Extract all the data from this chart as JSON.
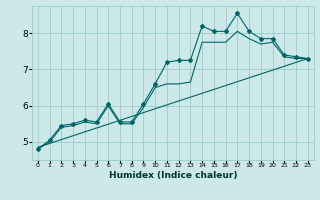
{
  "xlabel": "Humidex (Indice chaleur)",
  "bg_color": "#cce8e8",
  "grid_color": "#99cccc",
  "line_color": "#006666",
  "xlim": [
    -0.5,
    23.5
  ],
  "ylim": [
    4.5,
    8.75
  ],
  "yticks": [
    5,
    6,
    7,
    8
  ],
  "xticks": [
    0,
    1,
    2,
    3,
    4,
    5,
    6,
    7,
    8,
    9,
    10,
    11,
    12,
    13,
    14,
    15,
    16,
    17,
    18,
    19,
    20,
    21,
    22,
    23
  ],
  "line1_x": [
    0,
    1,
    2,
    3,
    4,
    5,
    6,
    7,
    8,
    9,
    10,
    11,
    12,
    13,
    14,
    15,
    16,
    17,
    18,
    19,
    20,
    21,
    22,
    23
  ],
  "line1_y": [
    4.8,
    5.05,
    5.45,
    5.5,
    5.6,
    5.55,
    6.05,
    5.55,
    5.55,
    6.05,
    6.6,
    7.2,
    7.25,
    7.25,
    8.2,
    8.05,
    8.05,
    8.55,
    8.05,
    7.85,
    7.85,
    7.4,
    7.35,
    7.3
  ],
  "line2_x": [
    0,
    23
  ],
  "line2_y": [
    4.85,
    7.3
  ],
  "line3_x": [
    0,
    1,
    2,
    3,
    4,
    5,
    6,
    7,
    8,
    9,
    10,
    11,
    12,
    13,
    14,
    15,
    16,
    17,
    18,
    19,
    20,
    21,
    22,
    23
  ],
  "line3_y": [
    4.8,
    5.0,
    5.4,
    5.45,
    5.55,
    5.5,
    6.0,
    5.5,
    5.5,
    5.95,
    6.5,
    6.6,
    6.6,
    6.65,
    7.75,
    7.75,
    7.75,
    8.05,
    7.85,
    7.7,
    7.75,
    7.35,
    7.3,
    7.3
  ]
}
